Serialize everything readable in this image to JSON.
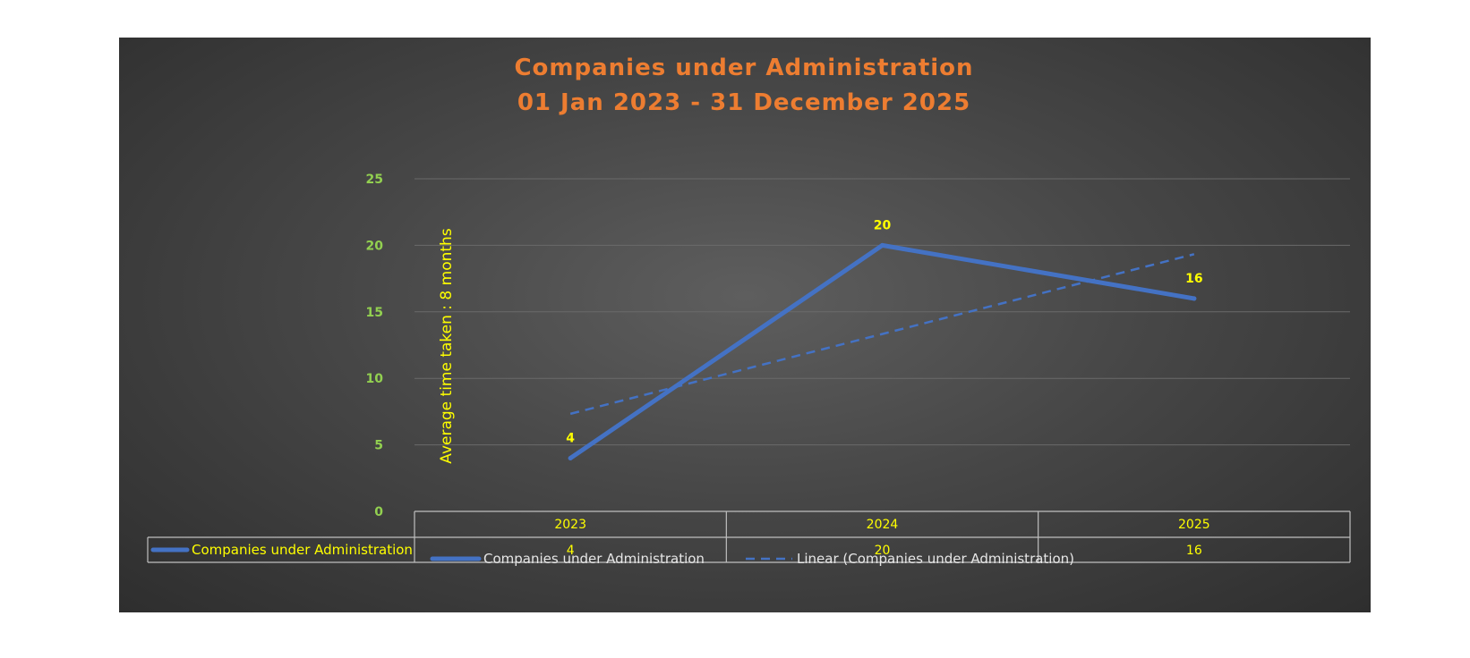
{
  "chart_data": {
    "type": "line",
    "title": "Companies under Administration",
    "subtitle": "01 Jan 2023 - 31 December 2025",
    "categories": [
      "2023",
      "2024",
      "2025"
    ],
    "series": [
      {
        "name": "Companies under Administration",
        "values": [
          4,
          20,
          16
        ],
        "color": "#4472c4"
      }
    ],
    "trendline": {
      "name": "Linear (Companies under Administration)",
      "type": "linear",
      "color": "#4472c4"
    },
    "ylim": [
      0,
      25
    ],
    "yticks": [
      0,
      5,
      10,
      15,
      20,
      25
    ],
    "annotation": "Average time taken : 8 months",
    "grid": true,
    "data_table": true,
    "legend_position": "bottom",
    "colors": {
      "title": "#ed7d31",
      "tick": "#92d050",
      "label": "#ffff00",
      "background": "#3a3a3a"
    }
  }
}
